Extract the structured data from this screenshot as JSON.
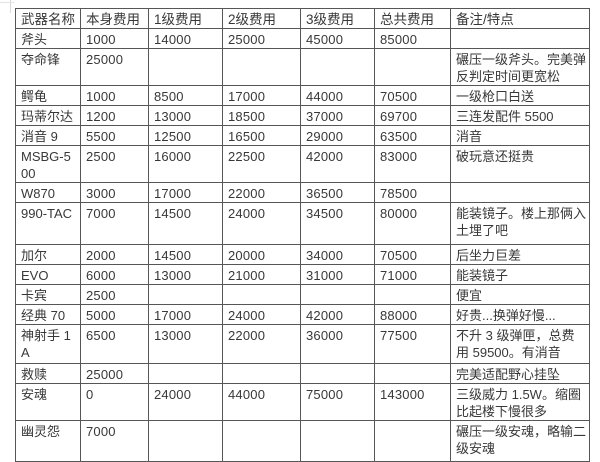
{
  "colors": {
    "border": "#565656",
    "text": "#383838",
    "background": "#ffffff"
  },
  "table": {
    "headers": [
      "武器名称",
      "本身费用",
      "1级费用",
      "2级费用",
      "3级费用",
      "总共费用",
      "备注/特点"
    ],
    "rows": [
      {
        "name": "斧头",
        "base": "1000",
        "lv1": "14000",
        "lv2": "25000",
        "lv3": "45000",
        "total": "85000",
        "note": ""
      },
      {
        "name": "夺命锋",
        "base": "25000",
        "lv1": "",
        "lv2": "",
        "lv3": "",
        "total": "",
        "note": "碾压一级斧头。完美弹反判定时间更宽松"
      },
      {
        "name": "鳄龟",
        "base": "1000",
        "lv1": "8500",
        "lv2": "17000",
        "lv3": "44000",
        "total": "70500",
        "note": "一级枪口白送"
      },
      {
        "name": "玛蒂尔达",
        "base": "1200",
        "lv1": "13000",
        "lv2": "18500",
        "lv3": "37000",
        "total": "69700",
        "note": "三连发配件 5500"
      },
      {
        "name": "消音 9",
        "base": "5500",
        "lv1": "12500",
        "lv2": "16500",
        "lv3": "29000",
        "total": "63500",
        "note": "消音"
      },
      {
        "name": "MSBG-500",
        "base": "2500",
        "lv1": "16000",
        "lv2": "22500",
        "lv3": "42000",
        "total": "83000",
        "note": "破玩意还挺贵"
      },
      {
        "name": "W870",
        "base": "3000",
        "lv1": "17000",
        "lv2": "22000",
        "lv3": "36500",
        "total": "78500",
        "note": ""
      },
      {
        "name": "990-TAC",
        "base": "7000",
        "lv1": "14500",
        "lv2": "24000",
        "lv3": "34500",
        "total": "80000",
        "note": "能装镜子。楼上那俩入土埋了吧"
      },
      {
        "name": "加尔",
        "base": "2000",
        "lv1": "14500",
        "lv2": "20000",
        "lv3": "34000",
        "total": "70500",
        "note": "后坐力巨差"
      },
      {
        "name": "EVO",
        "base": "6000",
        "lv1": "13000",
        "lv2": "21000",
        "lv3": "31000",
        "total": "71000",
        "note": "能装镜子"
      },
      {
        "name": "卡宾",
        "base": "2500",
        "lv1": "",
        "lv2": "",
        "lv3": "",
        "total": "",
        "note": "便宜"
      },
      {
        "name": "经典 70",
        "base": "5000",
        "lv1": "17000",
        "lv2": "24000",
        "lv3": "42000",
        "total": "88000",
        "note": "好贵...换弹好慢..."
      },
      {
        "name": "神射手 1A",
        "base": "6500",
        "lv1": "13000",
        "lv2": "22000",
        "lv3": "36000",
        "total": "77500",
        "note": "不升 3 级弹匣，总费用 59500。有消音"
      },
      {
        "name": "救赎",
        "base": "25000",
        "lv1": "",
        "lv2": "",
        "lv3": "",
        "total": "",
        "note": "完美适配野心挂坠"
      },
      {
        "name": "安魂",
        "base": "0",
        "lv1": "24000",
        "lv2": "44000",
        "lv3": "75000",
        "total": "143000",
        "note": "三级威力 1.5W。缩圈比起楼下慢很多"
      },
      {
        "name": "幽灵怨",
        "base": "7000",
        "lv1": "",
        "lv2": "",
        "lv3": "",
        "total": "",
        "note": "碾压一级安魂，略输二级安魂"
      }
    ]
  }
}
